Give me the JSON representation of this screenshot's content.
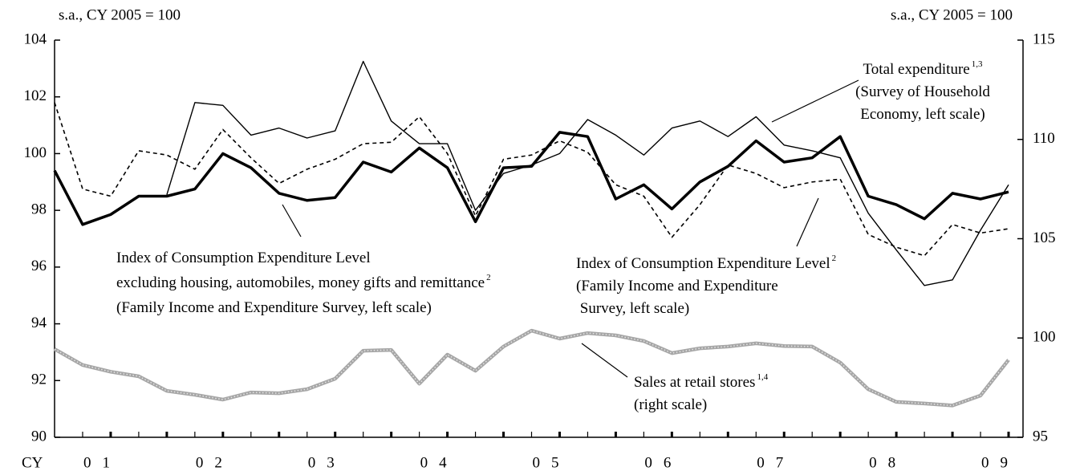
{
  "chart_data": {
    "type": "line",
    "left_axis_label": "s.a., CY 2005 = 100",
    "right_axis_label": "s.a., CY 2005 = 100",
    "x_label": "CY",
    "year_labels": [
      "01",
      "02",
      "03",
      "04",
      "05",
      "06",
      "07",
      "08",
      "09"
    ],
    "ylim": [
      90,
      104
    ],
    "yticks": [
      90,
      92,
      94,
      96,
      98,
      100,
      102,
      104
    ],
    "y2lim": [
      95,
      115
    ],
    "y2ticks": [
      95,
      100,
      105,
      110,
      115
    ],
    "series": [
      {
        "color": "#000000",
        "style": "dashed",
        "width": 1.6,
        "values": [
          101.8,
          98.75,
          98.5,
          100.1,
          99.95,
          99.45,
          100.85,
          99.85,
          98.95,
          99.45,
          99.8,
          100.35,
          100.4,
          101.3,
          100.0,
          97.8,
          99.8,
          99.95,
          100.45,
          100.05,
          98.9,
          98.5,
          97.05,
          98.2,
          99.6,
          99.3,
          98.8,
          99.0,
          99.1,
          97.15,
          96.7,
          96.4,
          97.5,
          97.2,
          97.35
        ]
      },
      {
        "color": "#000000",
        "style": "solid",
        "width": 1.4,
        "values": [
          null,
          null,
          null,
          null,
          98.55,
          101.8,
          101.7,
          100.65,
          100.9,
          100.55,
          100.8,
          103.25,
          101.15,
          100.35,
          100.35,
          98.0,
          99.3,
          99.6,
          100.0,
          101.2,
          100.65,
          99.95,
          100.9,
          101.15,
          100.6,
          101.3,
          100.3,
          100.1,
          99.85,
          97.9,
          96.6,
          95.35,
          95.55,
          97.3,
          98.9
        ]
      },
      {
        "color": "#000000",
        "style": "solid",
        "width": 3.5,
        "values": [
          99.4,
          97.5,
          97.85,
          98.5,
          98.5,
          98.75,
          100.0,
          99.5,
          98.6,
          98.35,
          98.45,
          99.7,
          99.35,
          100.2,
          99.5,
          97.6,
          99.5,
          99.55,
          100.75,
          100.6,
          98.4,
          98.9,
          98.05,
          99.0,
          99.55,
          100.45,
          99.7,
          99.85,
          100.6,
          98.5,
          98.2,
          97.7,
          98.6,
          98.4,
          98.65
        ]
      },
      {
        "color": "#a6a6a6",
        "style": "solid",
        "width": 4.5,
        "axis": "y2",
        "values": [
          99.44,
          98.64,
          98.3,
          98.07,
          97.34,
          97.14,
          96.9,
          97.26,
          97.22,
          97.42,
          97.95,
          99.36,
          99.4,
          97.7,
          99.16,
          98.35,
          99.57,
          100.37,
          99.97,
          100.25,
          100.13,
          99.85,
          99.24,
          99.48,
          99.57,
          99.73,
          99.6,
          99.57,
          98.76,
          97.42,
          96.78,
          96.7,
          96.6,
          97.1,
          98.9
        ]
      }
    ],
    "annotations": [
      {
        "lines": [
          {
            "text": "Index of Consumption Expenditure Level"
          },
          {
            "text": "excluding housing, automobiles, money gifts and remittance",
            "sup": "2"
          },
          {
            "text": "(Family Income and Expenditure Survey, left scale)"
          }
        ]
      },
      {
        "lines": [
          {
            "text": "Index of Consumption Expenditure Level",
            "sup": "2"
          },
          {
            "text": "(Family Income and Expenditure"
          },
          {
            "text": " Survey, left scale)"
          }
        ]
      },
      {
        "lines": [
          {
            "text": "Total expenditure",
            "sup": "1,3"
          },
          {
            "text": "(Survey of Household"
          },
          {
            "text": "Economy, left scale)"
          }
        ]
      },
      {
        "lines": [
          {
            "text": "Sales at retail stores",
            "sup": "1,4"
          },
          {
            "text": "(right scale)"
          }
        ]
      }
    ]
  }
}
